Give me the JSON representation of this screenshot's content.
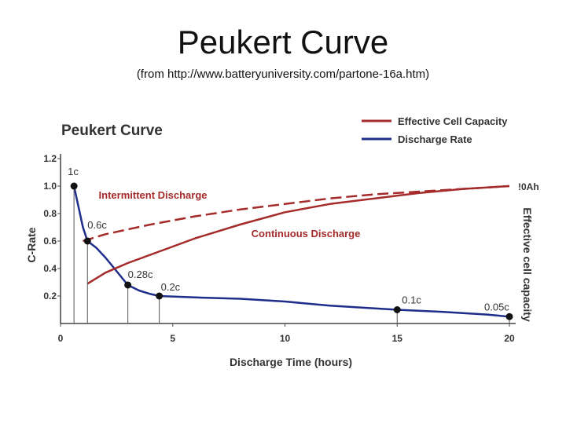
{
  "slide": {
    "title": "Peukert Curve",
    "subtitle": "(from http://www.batteryuniversity.com/partone-16a.htm)"
  },
  "chart_data": {
    "type": "line",
    "title": "Peukert Curve",
    "xlabel": "Discharge Time (hours)",
    "ylabel": "C-Rate",
    "y2label": "Effective cell capacity",
    "y2tick": "!0Ah",
    "xlim": [
      0,
      20
    ],
    "ylim": [
      0,
      1.2
    ],
    "x_ticks": [
      0,
      5,
      10,
      15,
      20
    ],
    "y_ticks": [
      "0.2",
      "0.4",
      "0.6",
      "0.8",
      "1.0",
      "1.2"
    ],
    "grid": false,
    "legend_position": "top-right",
    "colors": {
      "capacity": "#a52a2a",
      "rate": "#1f2d8a"
    },
    "series": [
      {
        "name": "Discharge Rate",
        "role": "rate",
        "x": [
          0.6,
          1.0,
          1.2,
          1.6,
          2.0,
          2.5,
          3.0,
          3.5,
          4.0,
          4.4,
          6.0,
          8.0,
          10.0,
          12.0,
          15.0,
          17.0,
          19.0,
          20.0
        ],
        "y": [
          1.0,
          0.7,
          0.6,
          0.55,
          0.48,
          0.38,
          0.28,
          0.24,
          0.215,
          0.2,
          0.19,
          0.18,
          0.16,
          0.13,
          0.1,
          0.085,
          0.065,
          0.05
        ]
      },
      {
        "name": "Effective Cell Capacity",
        "role": "capacity",
        "label": "Continuous Discharge",
        "dashed": false,
        "x": [
          1.2,
          2.0,
          3.0,
          4.0,
          5.0,
          6.0,
          8.0,
          10.0,
          12.0,
          14.0,
          16.0,
          18.0,
          20.0
        ],
        "y": [
          0.29,
          0.37,
          0.44,
          0.5,
          0.56,
          0.62,
          0.72,
          0.81,
          0.87,
          0.91,
          0.95,
          0.98,
          1.0
        ]
      },
      {
        "name": "Intermittent Discharge",
        "role": "capacity",
        "label": "Intermittent Discharge",
        "dashed": true,
        "x": [
          1.0,
          2.0,
          4.0,
          6.0,
          8.0,
          10.0,
          12.0,
          14.0,
          16.0,
          18.0,
          20.0
        ],
        "y": [
          0.6,
          0.65,
          0.72,
          0.78,
          0.83,
          0.87,
          0.91,
          0.94,
          0.96,
          0.98,
          1.0
        ]
      }
    ],
    "points": [
      {
        "x": 0.6,
        "y": 1.0,
        "label": "1c"
      },
      {
        "x": 1.2,
        "y": 0.6,
        "label": "0.6c"
      },
      {
        "x": 3.0,
        "y": 0.28,
        "label": "0.28c"
      },
      {
        "x": 4.4,
        "y": 0.2,
        "label": "0.2c"
      },
      {
        "x": 15.0,
        "y": 0.1,
        "label": "0.1c"
      },
      {
        "x": 20.0,
        "y": 0.05,
        "label": "0.05c"
      }
    ],
    "legend": [
      {
        "label": "Effective Cell Capacity",
        "role": "capacity"
      },
      {
        "label": "Discharge Rate",
        "role": "rate"
      }
    ]
  }
}
